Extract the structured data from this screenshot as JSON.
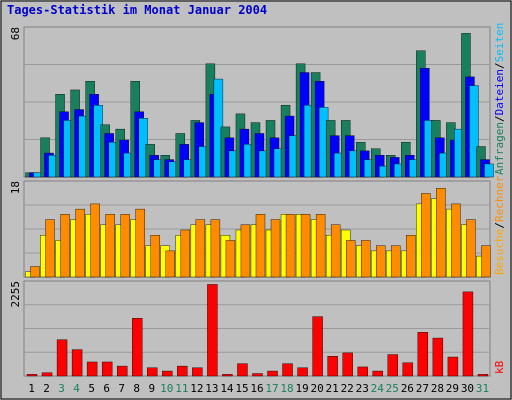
{
  "title": "Tages-Statistik im Monat Januar 2004",
  "chart_data": [
    {
      "type": "bar",
      "panel": "top",
      "ymax_label": "68",
      "ylim": [
        0,
        68
      ],
      "grid": true,
      "categories": [
        "1",
        "2",
        "3",
        "4",
        "5",
        "6",
        "7",
        "8",
        "9",
        "10",
        "11",
        "12",
        "13",
        "14",
        "15",
        "16",
        "17",
        "18",
        "19",
        "20",
        "21",
        "22",
        "23",
        "24",
        "25",
        "26",
        "27",
        "28",
        "29",
        "30",
        "31"
      ],
      "series": [
        {
          "name": "Anfragen",
          "color": "#1a7f5e",
          "values": [
            2,
            18,
            38,
            40,
            44,
            24,
            22,
            44,
            15,
            10,
            20,
            26,
            52,
            23,
            29,
            25,
            26,
            33,
            52,
            48,
            26,
            26,
            16,
            13,
            10,
            16,
            58,
            26,
            25,
            66,
            14
          ]
        },
        {
          "name": "Dateien",
          "color": "#0000ff",
          "values": [
            2,
            11,
            30,
            31,
            38,
            20,
            17,
            30,
            10,
            8,
            15,
            25,
            38,
            18,
            22,
            20,
            18,
            28,
            48,
            44,
            19,
            19,
            12,
            10,
            9,
            10,
            50,
            18,
            17,
            46,
            8
          ]
        },
        {
          "name": "Seiten",
          "color": "#00bfff",
          "values": [
            2,
            10,
            26,
            28,
            33,
            16,
            11,
            27,
            8,
            7,
            8,
            14,
            45,
            12,
            15,
            12,
            13,
            19,
            33,
            32,
            11,
            12,
            8,
            5,
            6,
            8,
            26,
            11,
            22,
            42,
            6
          ]
        }
      ],
      "right_labels": [
        {
          "text": "Anfragen",
          "color": "#1a7f5e"
        },
        {
          "text": "/",
          "color": "#000000"
        },
        {
          "text": "Dateien",
          "color": "#0000ff"
        },
        {
          "text": "/",
          "color": "#000000"
        },
        {
          "text": "Seiten",
          "color": "#00bfff"
        }
      ]
    },
    {
      "type": "bar",
      "panel": "middle",
      "ymax_label": "18",
      "ylim": [
        0,
        18
      ],
      "grid": true,
      "categories": [
        "1",
        "2",
        "3",
        "4",
        "5",
        "6",
        "7",
        "8",
        "9",
        "10",
        "11",
        "12",
        "13",
        "14",
        "15",
        "16",
        "17",
        "18",
        "19",
        "20",
        "21",
        "22",
        "23",
        "24",
        "25",
        "26",
        "27",
        "28",
        "29",
        "30",
        "31"
      ],
      "series": [
        {
          "name": "Besuche",
          "color": "#ffff00",
          "values": [
            1,
            8,
            7,
            11,
            12,
            10,
            10,
            11,
            6,
            6,
            8,
            10,
            10,
            8,
            9,
            10,
            9,
            12,
            12,
            11,
            8,
            9,
            6,
            5,
            5,
            5,
            14,
            15,
            13,
            10,
            4
          ]
        },
        {
          "name": "Rechner",
          "color": "#ff8c00",
          "values": [
            2,
            11,
            12,
            13,
            14,
            12,
            12,
            13,
            8,
            5,
            9,
            11,
            11,
            7,
            10,
            12,
            11,
            12,
            12,
            12,
            10,
            7,
            7,
            6,
            6,
            8,
            16,
            17,
            14,
            11,
            6
          ]
        }
      ],
      "right_labels": [
        {
          "text": "Besuche",
          "color": "#ffa500"
        },
        {
          "text": "/",
          "color": "#000000"
        },
        {
          "text": "Rechner",
          "color": "#ff8c00"
        }
      ]
    },
    {
      "type": "bar",
      "panel": "bottom",
      "ymax_label": "2255",
      "ylim": [
        0,
        2255
      ],
      "grid": true,
      "categories": [
        "1",
        "2",
        "3",
        "4",
        "5",
        "6",
        "7",
        "8",
        "9",
        "10",
        "11",
        "12",
        "13",
        "14",
        "15",
        "16",
        "17",
        "18",
        "19",
        "20",
        "21",
        "22",
        "23",
        "24",
        "25",
        "26",
        "27",
        "28",
        "29",
        "30",
        "31"
      ],
      "series": [
        {
          "name": "kB",
          "color": "#ff0000",
          "values": [
            40,
            80,
            880,
            640,
            340,
            340,
            240,
            1400,
            200,
            120,
            240,
            200,
            2220,
            40,
            300,
            60,
            120,
            300,
            200,
            1440,
            480,
            560,
            220,
            120,
            520,
            320,
            1060,
            920,
            460,
            2040,
            40
          ]
        }
      ],
      "right_labels": [
        {
          "text": "kB",
          "color": "#ff0000"
        }
      ],
      "weekend_days": [
        "3",
        "4",
        "10",
        "11",
        "17",
        "18",
        "24",
        "25",
        "31"
      ],
      "weekday_label_color": "#000000",
      "weekend_label_color": "#1a7f5e"
    }
  ],
  "colors": {
    "background": "#c0c0c0",
    "gridline": "#9a9a9a",
    "panel_border": "#808080"
  }
}
